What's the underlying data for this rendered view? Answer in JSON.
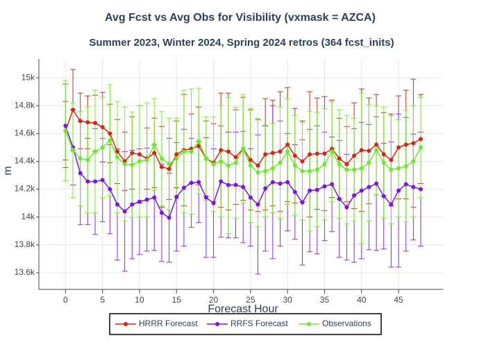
{
  "chart_data": {
    "type": "line",
    "title": "Avg Fcst vs Avg Obs for Visibility (vxmask = AZCA)",
    "subtitle": "Summer 2023, Winter 2024, Spring 2024 retros (364 fcst_inits)",
    "x_label": "Forecast Hour",
    "y_label": "m",
    "x": [
      0,
      1,
      2,
      3,
      4,
      5,
      6,
      7,
      8,
      9,
      10,
      11,
      12,
      13,
      14,
      15,
      16,
      17,
      18,
      19,
      20,
      21,
      22,
      23,
      24,
      25,
      26,
      27,
      28,
      29,
      30,
      31,
      32,
      33,
      34,
      35,
      36,
      37,
      38,
      39,
      40,
      41,
      42,
      43,
      44,
      45,
      46,
      47,
      48
    ],
    "xlim": [
      -3.6,
      51
    ],
    "xticks": [
      0,
      5,
      10,
      15,
      20,
      25,
      30,
      35,
      40,
      45
    ],
    "ylim": [
      13480,
      15135
    ],
    "yticks": [
      {
        "value": 13600,
        "label": "13.6k"
      },
      {
        "value": 13800,
        "label": "13.8k"
      },
      {
        "value": 14000,
        "label": "14k"
      },
      {
        "value": 14200,
        "label": "14.2k"
      },
      {
        "value": 14400,
        "label": "14.4k"
      },
      {
        "value": 14600,
        "label": "14.6k"
      },
      {
        "value": 14800,
        "label": "14.8k"
      },
      {
        "value": 15000,
        "label": "15k"
      }
    ],
    "grid": true,
    "legend": "bottom",
    "series": [
      {
        "name": "HRRR Forecast",
        "color": "#dd2211",
        "error_color": "#b33a1a",
        "values": [
          14620,
          14770,
          14690,
          14680,
          14675,
          14645,
          14600,
          14470,
          14400,
          14460,
          14450,
          14420,
          14460,
          14360,
          14345,
          14450,
          14480,
          14490,
          14510,
          14420,
          14390,
          14480,
          14470,
          14430,
          14490,
          14410,
          14370,
          14450,
          14460,
          14470,
          14520,
          14440,
          14400,
          14450,
          14455,
          14455,
          14490,
          14420,
          14380,
          14440,
          14480,
          14475,
          14520,
          14450,
          14410,
          14500,
          14520,
          14530,
          14560
        ],
        "error": [
          210,
          290,
          200,
          190,
          200,
          250,
          210,
          230,
          210,
          260,
          350,
          220,
          250,
          290,
          220,
          240,
          400,
          250,
          280,
          270,
          280,
          410,
          420,
          340,
          370,
          360,
          330,
          400,
          380,
          430,
          410,
          340,
          290,
          450,
          400,
          410,
          350,
          290,
          270,
          380,
          440,
          380,
          360,
          300,
          330,
          370,
          390,
          460,
          320
        ]
      },
      {
        "name": "RRFS Forecast",
        "color": "#7f11ee",
        "error_color": "#8a2be2",
        "values": [
          14655,
          14500,
          14315,
          14255,
          14255,
          14265,
          14200,
          14090,
          14040,
          14090,
          14110,
          14125,
          14140,
          14030,
          13995,
          14145,
          14210,
          14245,
          14250,
          14140,
          14100,
          14255,
          14230,
          14230,
          14215,
          14140,
          14090,
          14205,
          14250,
          14240,
          14250,
          14180,
          14105,
          14190,
          14195,
          14220,
          14235,
          14130,
          14070,
          14155,
          14190,
          14215,
          14240,
          14150,
          14090,
          14190,
          14235,
          14215,
          14200
        ],
        "error": [
          300,
          270,
          370,
          310,
          380,
          300,
          320,
          400,
          430,
          390,
          380,
          370,
          380,
          350,
          320,
          390,
          420,
          320,
          290,
          430,
          390,
          400,
          380,
          380,
          400,
          350,
          500,
          450,
          550,
          450,
          350,
          340,
          450,
          440,
          460,
          390,
          340,
          420,
          380,
          480,
          490,
          450,
          480,
          380,
          450,
          550,
          480,
          380,
          410
        ]
      },
      {
        "name": "Observations",
        "color": "#66ee22",
        "error_color": "#77ee33",
        "values": [
          14620,
          14480,
          14420,
          14410,
          14470,
          14500,
          14550,
          14430,
          14380,
          14375,
          14400,
          14410,
          14520,
          14420,
          14380,
          14420,
          14470,
          14470,
          14545,
          14420,
          14380,
          14400,
          14370,
          14390,
          14490,
          14370,
          14320,
          14330,
          14350,
          14390,
          14470,
          14370,
          14330,
          14330,
          14340,
          14380,
          14470,
          14380,
          14340,
          14340,
          14350,
          14390,
          14480,
          14390,
          14340,
          14350,
          14365,
          14400,
          14500
        ],
        "error": [
          360,
          340,
          340,
          380,
          440,
          360,
          400,
          400,
          410,
          380,
          400,
          410,
          330,
          340,
          330,
          290,
          440,
          450,
          380,
          300,
          340,
          400,
          490,
          400,
          390,
          410,
          390,
          330,
          320,
          400,
          380,
          360,
          350,
          430,
          410,
          400,
          360,
          390,
          390,
          370,
          540,
          420,
          320,
          400,
          390,
          350,
          400,
          400,
          360
        ]
      }
    ]
  }
}
